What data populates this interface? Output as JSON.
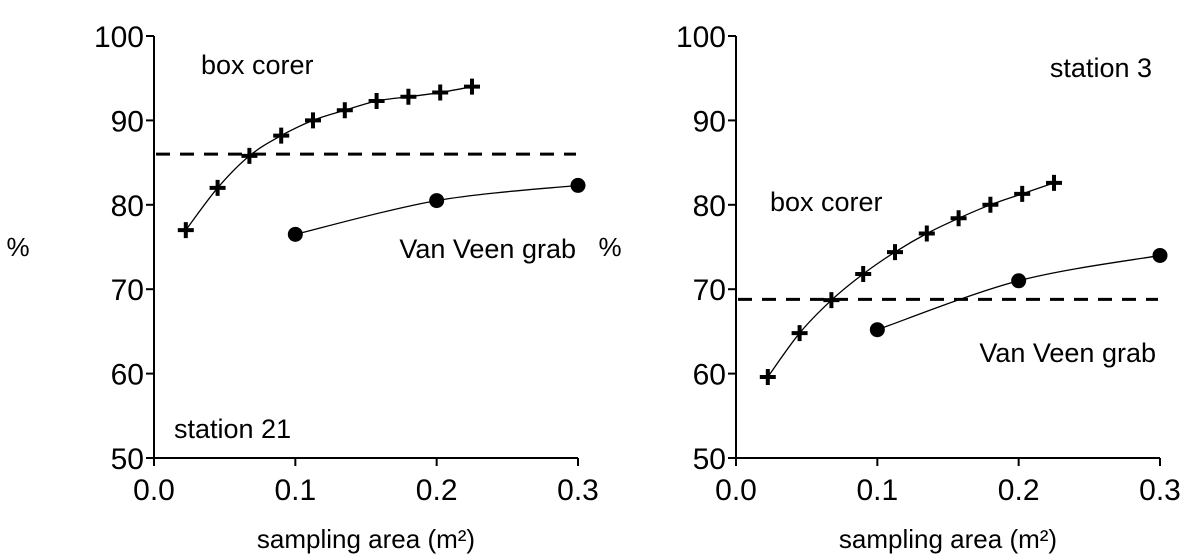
{
  "chart_data": [
    {
      "type": "line",
      "station_label": "station 21",
      "xlabel": "sampling area (m²)",
      "ylabel": "%",
      "xlim": [
        0.0,
        0.3
      ],
      "ylim": [
        50,
        100
      ],
      "x_ticks": [
        "0.0",
        "0.1",
        "0.2",
        "0.3"
      ],
      "y_ticks": [
        "50",
        "60",
        "70",
        "80",
        "90",
        "100"
      ],
      "reference_line": 86,
      "series": [
        {
          "name": "box corer",
          "marker": "plus",
          "x": [
            0.0225,
            0.045,
            0.0675,
            0.09,
            0.1125,
            0.135,
            0.1575,
            0.18,
            0.2025,
            0.225
          ],
          "y": [
            77,
            82,
            85.8,
            88.2,
            90,
            91.2,
            92.3,
            92.8,
            93.3,
            94
          ]
        },
        {
          "name": "Van Veen grab",
          "marker": "circle",
          "x": [
            0.1,
            0.2,
            0.3
          ],
          "y": [
            76.5,
            80.5,
            82.3
          ]
        }
      ]
    },
    {
      "type": "line",
      "station_label": "station 3",
      "xlabel": "sampling area (m²)",
      "ylabel": "%",
      "xlim": [
        0.0,
        0.3
      ],
      "ylim": [
        50,
        100
      ],
      "x_ticks": [
        "0.0",
        "0.1",
        "0.2",
        "0.3"
      ],
      "y_ticks": [
        "50",
        "60",
        "70",
        "80",
        "90",
        "100"
      ],
      "reference_line": 68.8,
      "series": [
        {
          "name": "box corer",
          "marker": "plus",
          "x": [
            0.0225,
            0.045,
            0.0675,
            0.09,
            0.1125,
            0.135,
            0.1575,
            0.18,
            0.2025,
            0.225
          ],
          "y": [
            59.6,
            64.8,
            68.7,
            71.8,
            74.4,
            76.6,
            78.4,
            80,
            81.3,
            82.6
          ]
        },
        {
          "name": "Van Veen grab",
          "marker": "circle",
          "x": [
            0.1,
            0.2,
            0.3
          ],
          "y": [
            65.2,
            71,
            74
          ]
        }
      ]
    }
  ]
}
